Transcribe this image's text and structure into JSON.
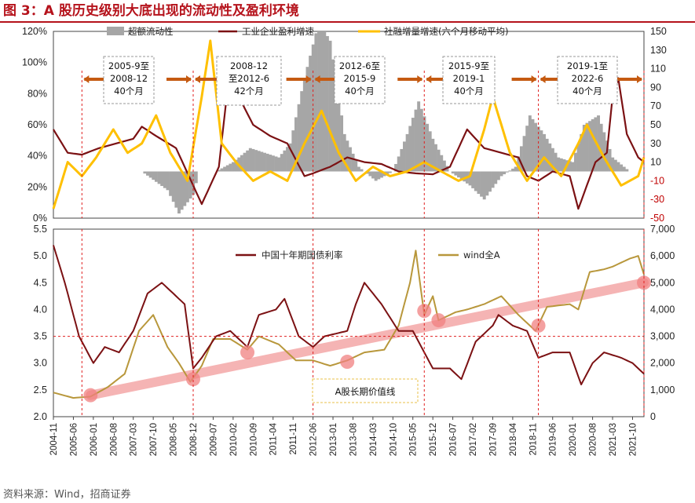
{
  "title": "图 3：A 股历史级别大底出现的流动性及盈利环境",
  "source": "资料来源：Wind，招商证券",
  "colors": {
    "title": "#b5121b",
    "excess": "#a6a6a6",
    "profit": "#7b1113",
    "tsf": "#ffc000",
    "bond": "#7b1113",
    "windA": "#b8973b",
    "band": "#f4a7a7",
    "guide": "#e02020",
    "arrow": "#c55a11"
  },
  "x_labels": [
    "2004-11",
    "2005-06",
    "2006-01",
    "2006-08",
    "2007-03",
    "2007-10",
    "2008-05",
    "2008-12",
    "2009-07",
    "2010-02",
    "2010-09",
    "2011-04",
    "2011-11",
    "2012-06",
    "2013-01",
    "2013-08",
    "2014-03",
    "2014-10",
    "2015-05",
    "2015-12",
    "2016-07",
    "2017-02",
    "2017-09",
    "2018-04",
    "2018-11",
    "2019-06",
    "2020-01",
    "2020-08",
    "2021-03",
    "2021-10"
  ],
  "top_chart": {
    "legend": {
      "excess_liquidity": "超额流动性",
      "profit_growth": "工业企业盈利增速",
      "tsf_growth": "社融增量增速(六个月移动平均)"
    },
    "left_ticks": [
      "120%",
      "100%",
      "80%",
      "60%",
      "40%",
      "20%",
      "0%"
    ],
    "right_ticks": [
      "150",
      "130",
      "110",
      "90",
      "70",
      "50",
      "30",
      "10",
      "-10",
      "-30",
      "-50"
    ],
    "right_red_ticks": [
      "-10",
      "-30",
      "-50"
    ],
    "cycles": [
      {
        "lines": [
          "2005-9至",
          "2008-12",
          "40个月"
        ]
      },
      {
        "lines": [
          "2008-12",
          "至2012-6",
          "42个月"
        ]
      },
      {
        "lines": [
          "2012-6至",
          "2015-9",
          "40个月"
        ]
      },
      {
        "lines": [
          "2015-9至",
          "2019-1",
          "40个月"
        ]
      },
      {
        "lines": [
          "2019-1至",
          "2022-6",
          "40个月"
        ]
      }
    ]
  },
  "bottom_chart": {
    "legend": {
      "bond_yield": "中国十年期国债利率",
      "wind_a": "wind全A"
    },
    "left_ticks": [
      "5.5",
      "5.0",
      "4.5",
      "4.0",
      "3.5",
      "3.0",
      "2.5",
      "2.0"
    ],
    "right_ticks": [
      "7,000",
      "6,000",
      "5,000",
      "4,000",
      "3,000",
      "2,000",
      "1,000",
      "0"
    ],
    "label": "A股长期价值线"
  },
  "chart_data": [
    {
      "type": "line",
      "title": "超额流动性 / 工业企业盈利增速 / 社融增量增速(六个月移动平均)",
      "x_start": "2004-11",
      "x_end": "2022-02",
      "x_step": "month",
      "ylim_left": [
        0,
        120
      ],
      "ylim_right": [
        -50,
        150
      ],
      "series": [
        {
          "name": "超额流动性",
          "kind": "area",
          "axis": "right",
          "anchors": [
            [
              "2004-11",
              0
            ],
            [
              "2006-06",
              0
            ],
            [
              "2007-01",
              0
            ],
            [
              "2007-06",
              0
            ],
            [
              "2008-03",
              -20
            ],
            [
              "2008-07",
              -45
            ],
            [
              "2008-12",
              -25
            ],
            [
              "2009-02",
              0
            ],
            [
              "2009-08",
              0
            ],
            [
              "2010-02",
              10
            ],
            [
              "2010-08",
              25
            ],
            [
              "2011-01",
              20
            ],
            [
              "2011-06",
              15
            ],
            [
              "2011-10",
              30
            ],
            [
              "2012-03",
              100
            ],
            [
              "2012-08",
              160
            ],
            [
              "2012-12",
              140
            ],
            [
              "2013-05",
              40
            ],
            [
              "2013-10",
              5
            ],
            [
              "2014-04",
              -10
            ],
            [
              "2014-10",
              0
            ],
            [
              "2015-03",
              40
            ],
            [
              "2015-07",
              75
            ],
            [
              "2015-12",
              35
            ],
            [
              "2016-06",
              0
            ],
            [
              "2017-01",
              -15
            ],
            [
              "2017-06",
              -30
            ],
            [
              "2017-12",
              -5
            ],
            [
              "2018-05",
              5
            ],
            [
              "2018-10",
              60
            ],
            [
              "2019-03",
              40
            ],
            [
              "2019-08",
              15
            ],
            [
              "2020-01",
              10
            ],
            [
              "2020-05",
              50
            ],
            [
              "2020-10",
              60
            ],
            [
              "2021-03",
              15
            ],
            [
              "2021-09",
              0
            ],
            [
              "2022-02",
              0
            ]
          ]
        },
        {
          "name": "工业企业盈利增速",
          "kind": "line",
          "axis": "right",
          "anchors": [
            [
              "2004-11",
              45
            ],
            [
              "2005-04",
              20
            ],
            [
              "2005-09",
              18
            ],
            [
              "2006-03",
              25
            ],
            [
              "2006-09",
              30
            ],
            [
              "2007-03",
              35
            ],
            [
              "2007-06",
              48
            ],
            [
              "2007-11",
              38
            ],
            [
              "2008-06",
              25
            ],
            [
              "2008-12",
              -15
            ],
            [
              "2009-03",
              -35
            ],
            [
              "2009-09",
              5
            ],
            [
              "2010-01",
              115
            ],
            [
              "2010-04",
              80
            ],
            [
              "2010-09",
              50
            ],
            [
              "2011-03",
              38
            ],
            [
              "2011-09",
              30
            ],
            [
              "2012-03",
              -5
            ],
            [
              "2012-06",
              -2
            ],
            [
              "2012-12",
              5
            ],
            [
              "2013-06",
              15
            ],
            [
              "2013-12",
              10
            ],
            [
              "2014-06",
              8
            ],
            [
              "2014-12",
              0
            ],
            [
              "2015-06",
              -2
            ],
            [
              "2015-12",
              -3
            ],
            [
              "2016-06",
              5
            ],
            [
              "2016-12",
              45
            ],
            [
              "2017-06",
              25
            ],
            [
              "2017-12",
              20
            ],
            [
              "2018-06",
              15
            ],
            [
              "2018-09",
              -5
            ],
            [
              "2019-01",
              -10
            ],
            [
              "2019-06",
              0
            ],
            [
              "2019-12",
              -5
            ],
            [
              "2020-03",
              -40
            ],
            [
              "2020-09",
              10
            ],
            [
              "2021-01",
              20
            ],
            [
              "2021-03",
              80
            ],
            [
              "2021-05",
              100
            ],
            [
              "2021-08",
              40
            ],
            [
              "2021-12",
              15
            ],
            [
              "2022-02",
              10
            ]
          ]
        },
        {
          "name": "社融增量增速(六个月移动平均)",
          "kind": "line",
          "axis": "right",
          "anchors": [
            [
              "2004-11",
              -40
            ],
            [
              "2005-04",
              10
            ],
            [
              "2005-09",
              -5
            ],
            [
              "2006-02",
              15
            ],
            [
              "2006-08",
              45
            ],
            [
              "2007-01",
              20
            ],
            [
              "2007-06",
              30
            ],
            [
              "2007-11",
              60
            ],
            [
              "2008-04",
              20
            ],
            [
              "2008-10",
              -10
            ],
            [
              "2009-03",
              80
            ],
            [
              "2009-06",
              140
            ],
            [
              "2009-10",
              30
            ],
            [
              "2010-03",
              10
            ],
            [
              "2010-09",
              -10
            ],
            [
              "2011-03",
              0
            ],
            [
              "2011-09",
              -10
            ],
            [
              "2012-03",
              30
            ],
            [
              "2012-09",
              65
            ],
            [
              "2013-03",
              20
            ],
            [
              "2013-09",
              -10
            ],
            [
              "2014-03",
              5
            ],
            [
              "2014-09",
              -5
            ],
            [
              "2015-03",
              0
            ],
            [
              "2015-09",
              10
            ],
            [
              "2016-03",
              0
            ],
            [
              "2016-09",
              -10
            ],
            [
              "2017-01",
              -5
            ],
            [
              "2017-06",
              45
            ],
            [
              "2017-09",
              80
            ],
            [
              "2018-03",
              20
            ],
            [
              "2018-09",
              -10
            ],
            [
              "2019-03",
              15
            ],
            [
              "2019-09",
              -5
            ],
            [
              "2020-03",
              30
            ],
            [
              "2020-06",
              50
            ],
            [
              "2020-12",
              15
            ],
            [
              "2021-06",
              -15
            ],
            [
              "2021-12",
              -5
            ],
            [
              "2022-02",
              15
            ]
          ]
        }
      ]
    },
    {
      "type": "line",
      "title": "中国十年期国债利率 / wind全A",
      "x_start": "2004-11",
      "x_end": "2022-02",
      "x_step": "month",
      "ylim_left": [
        2.0,
        5.5
      ],
      "ylim_right": [
        0,
        7000
      ],
      "series": [
        {
          "name": "中国十年期国债利率",
          "axis": "left",
          "anchors": [
            [
              "2004-11",
              5.2
            ],
            [
              "2005-03",
              4.5
            ],
            [
              "2005-08",
              3.5
            ],
            [
              "2006-01",
              3.0
            ],
            [
              "2006-05",
              3.3
            ],
            [
              "2006-10",
              3.2
            ],
            [
              "2007-03",
              3.6
            ],
            [
              "2007-08",
              4.3
            ],
            [
              "2008-01",
              4.5
            ],
            [
              "2008-05",
              4.3
            ],
            [
              "2008-09",
              4.1
            ],
            [
              "2008-12",
              2.9
            ],
            [
              "2009-03",
              3.1
            ],
            [
              "2009-08",
              3.5
            ],
            [
              "2010-01",
              3.6
            ],
            [
              "2010-07",
              3.3
            ],
            [
              "2010-11",
              3.9
            ],
            [
              "2011-05",
              4.0
            ],
            [
              "2011-08",
              4.2
            ],
            [
              "2012-01",
              3.5
            ],
            [
              "2012-06",
              3.3
            ],
            [
              "2012-10",
              3.5
            ],
            [
              "2013-06",
              3.6
            ],
            [
              "2013-09",
              4.1
            ],
            [
              "2013-12",
              4.5
            ],
            [
              "2014-06",
              4.1
            ],
            [
              "2014-12",
              3.6
            ],
            [
              "2015-05",
              3.6
            ],
            [
              "2015-12",
              2.9
            ],
            [
              "2016-06",
              2.9
            ],
            [
              "2016-10",
              2.7
            ],
            [
              "2017-03",
              3.4
            ],
            [
              "2017-09",
              3.7
            ],
            [
              "2017-11",
              3.9
            ],
            [
              "2018-04",
              3.7
            ],
            [
              "2018-09",
              3.6
            ],
            [
              "2019-01",
              3.1
            ],
            [
              "2019-06",
              3.2
            ],
            [
              "2019-12",
              3.2
            ],
            [
              "2020-04",
              2.6
            ],
            [
              "2020-08",
              3.0
            ],
            [
              "2020-12",
              3.2
            ],
            [
              "2021-06",
              3.1
            ],
            [
              "2021-10",
              3.0
            ],
            [
              "2022-02",
              2.8
            ]
          ]
        },
        {
          "name": "wind全A",
          "axis": "right",
          "anchors": [
            [
              "2004-11",
              900
            ],
            [
              "2005-06",
              700
            ],
            [
              "2005-12",
              750
            ],
            [
              "2006-06",
              1100
            ],
            [
              "2006-12",
              1600
            ],
            [
              "2007-05",
              3200
            ],
            [
              "2007-10",
              3800
            ],
            [
              "2008-03",
              2600
            ],
            [
              "2008-07",
              2000
            ],
            [
              "2008-11",
              1300
            ],
            [
              "2009-03",
              1900
            ],
            [
              "2009-07",
              2900
            ],
            [
              "2010-01",
              2900
            ],
            [
              "2010-07",
              2500
            ],
            [
              "2010-11",
              3000
            ],
            [
              "2011-06",
              2700
            ],
            [
              "2011-12",
              2100
            ],
            [
              "2012-06",
              2100
            ],
            [
              "2012-12",
              1900
            ],
            [
              "2013-06",
              2100
            ],
            [
              "2013-12",
              2400
            ],
            [
              "2014-07",
              2500
            ],
            [
              "2014-12",
              3400
            ],
            [
              "2015-04",
              5000
            ],
            [
              "2015-06",
              6200
            ],
            [
              "2015-09",
              3800
            ],
            [
              "2015-12",
              4500
            ],
            [
              "2016-02",
              3600
            ],
            [
              "2016-08",
              3900
            ],
            [
              "2016-12",
              4000
            ],
            [
              "2017-06",
              4200
            ],
            [
              "2017-12",
              4500
            ],
            [
              "2018-06",
              3800
            ],
            [
              "2018-12",
              3200
            ],
            [
              "2019-04",
              4100
            ],
            [
              "2019-12",
              4200
            ],
            [
              "2020-03",
              4000
            ],
            [
              "2020-07",
              5400
            ],
            [
              "2020-12",
              5500
            ],
            [
              "2021-03",
              5600
            ],
            [
              "2021-09",
              5900
            ],
            [
              "2021-12",
              6000
            ],
            [
              "2022-02",
              5300
            ]
          ]
        }
      ],
      "value_line": {
        "name": "A股长期价值线",
        "from": [
          "2005-12",
          800
        ],
        "to": [
          "2022-02",
          5000
        ]
      },
      "markers": [
        [
          "2005-12",
          800
        ],
        [
          "2008-12",
          1400
        ],
        [
          "2010-07",
          2400
        ],
        [
          "2013-06",
          2050
        ],
        [
          "2015-09",
          3950
        ],
        [
          "2016-02",
          3600
        ],
        [
          "2019-01",
          3400
        ],
        [
          "2022-02",
          5000
        ]
      ]
    }
  ]
}
